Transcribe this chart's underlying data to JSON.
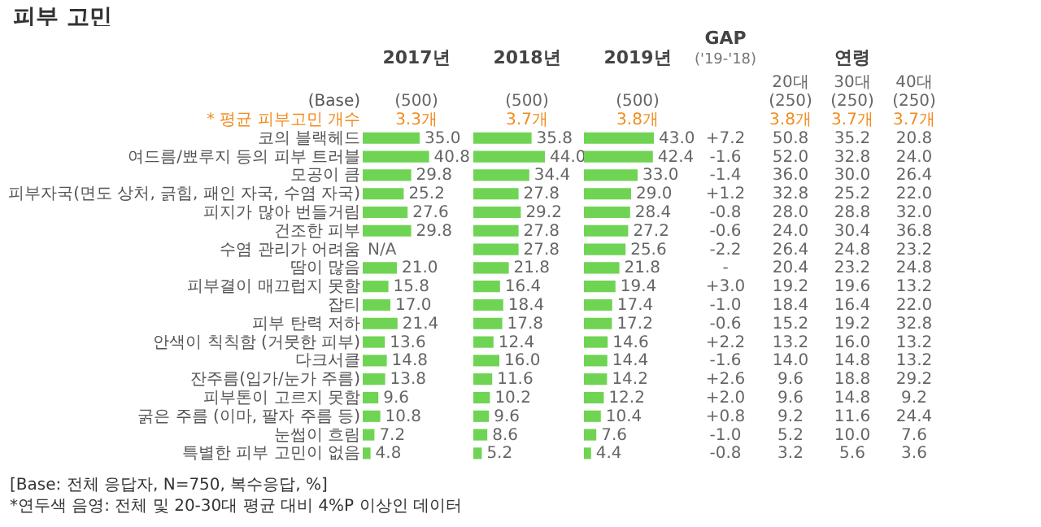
{
  "chart_data": [
    {
      "type": "other",
      "title": "피부 고민",
      "annotations": [
        "(Base)",
        "* 평균 피부고민 개수",
        "[Base: 전체 응답자, N=750, 복수응답, %]",
        "*연두색 음영: 전체 및 20-30대 평균 대비 4%P 이상인 데이터"
      ]
    },
    {
      "type": "bar",
      "orientation": "horizontal",
      "title": "2017년",
      "annotations": [
        "(500)",
        "3.3개"
      ],
      "tick_labels": "y",
      "color": "#6fd453",
      "categories": [
        "코의 블랙헤드",
        "여드름/뾰루지 등의 피부 트러블",
        "모공이 큼",
        "피부자국(면도 상처, 긁힘, 패인 자국, 수염 자국)",
        "피지가 많아 번들거림",
        "건조한 피부",
        "수염 관리가 어려움",
        "땀이 많음",
        "피부결이 매끄럽지 못함",
        "잡티",
        "피부 탄력 저하",
        "안색이 칙칙함 (거뭇한 피부)",
        "다크서클",
        "잔주름(입가/눈가 주름)",
        "피부톤이 고르지 못함",
        "굵은 주름 (이마, 팔자 주름 등)",
        "눈썹이 흐림",
        "특별한 피부 고민이 없음"
      ],
      "values": [
        35.0,
        40.8,
        29.8,
        25.2,
        27.6,
        29.8,
        null,
        21.0,
        15.8,
        17.0,
        21.4,
        13.6,
        14.8,
        13.8,
        9.6,
        10.8,
        7.2,
        4.8
      ],
      "value_labels": [
        "35.0",
        "40.8",
        "29.8",
        "25.2",
        "27.6",
        "29.8",
        "N/A",
        "21.0",
        "15.8",
        "17.0",
        "21.4",
        "13.6",
        "14.8",
        "13.8",
        "9.6",
        "10.8",
        "7.2",
        "4.8"
      ]
    },
    {
      "type": "bar",
      "orientation": "horizontal",
      "title": "2018년",
      "annotations": [
        "(500)",
        "3.7개"
      ],
      "tick_labels": false,
      "color": "#6fd453",
      "categories": [
        null,
        null,
        null,
        null,
        null,
        null,
        null,
        null,
        null,
        null,
        null,
        null,
        null,
        null,
        null,
        null,
        null,
        null
      ],
      "values": [
        35.8,
        44.0,
        34.4,
        27.8,
        29.2,
        27.8,
        27.8,
        21.8,
        16.4,
        18.4,
        17.8,
        12.4,
        16.0,
        11.6,
        10.2,
        9.6,
        8.6,
        5.2
      ],
      "value_labels": [
        "35.8",
        "44.0",
        "34.4",
        "27.8",
        "29.2",
        "27.8",
        "27.8",
        "21.8",
        "16.4",
        "18.4",
        "17.8",
        "12.4",
        "16.0",
        "11.6",
        "10.2",
        "9.6",
        "8.6",
        "5.2"
      ]
    },
    {
      "type": "bar",
      "orientation": "horizontal",
      "title": "2019년",
      "annotations": [
        "(500)",
        "3.8개"
      ],
      "tick_labels": false,
      "color": "#6fd453",
      "categories": [
        null,
        null,
        null,
        null,
        null,
        null,
        null,
        null,
        null,
        null,
        null,
        null,
        null,
        null,
        null,
        null,
        null,
        null
      ],
      "values": [
        43.0,
        42.4,
        33.0,
        29.0,
        28.4,
        27.2,
        25.6,
        21.8,
        19.4,
        17.4,
        17.2,
        14.6,
        14.4,
        14.2,
        12.2,
        10.4,
        7.6,
        4.4
      ],
      "value_labels": [
        "43.0",
        "42.4",
        "33.0",
        "29.0",
        "28.4",
        "27.2",
        "25.6",
        "21.8",
        "19.4",
        "17.4",
        "17.2",
        "14.6",
        "14.4",
        "14.2",
        "12.2",
        "10.4",
        "7.6",
        "4.4"
      ]
    },
    {
      "type": "other",
      "title": "GAP",
      "subtitle": "('19-'18)",
      "annotations": [
        "+7.2",
        "-1.6",
        "-1.4",
        "+1.2",
        "-0.8",
        "-0.6",
        "-2.2",
        "-",
        "+3.0",
        "-1.0",
        "-0.6",
        "+2.2",
        "-1.6",
        "+2.6",
        "+2.0",
        "+0.8",
        "-1.0",
        "-0.8"
      ]
    },
    {
      "type": "other",
      "title": "연령",
      "annotations": [
        "20대",
        "30대",
        "40대",
        "(250)",
        "(250)",
        "(250)",
        "3.8개",
        "3.7개",
        "3.7개",
        "50.8",
        "35.2",
        "20.8",
        "52.0",
        "32.8",
        "24.0",
        "36.0",
        "30.0",
        "26.4",
        "32.8",
        "25.2",
        "22.0",
        "28.0",
        "28.8",
        "32.0",
        "24.0",
        "30.4",
        "36.8",
        "26.4",
        "24.8",
        "23.2",
        "20.4",
        "23.2",
        "24.8",
        "19.2",
        "19.6",
        "13.2",
        "18.4",
        "16.4",
        "22.0",
        "15.2",
        "19.2",
        "32.8",
        "13.2",
        "16.0",
        "13.2",
        "14.0",
        "14.8",
        "13.2",
        "9.6",
        "18.8",
        "29.2",
        "9.6",
        "14.8",
        "9.2",
        "9.2",
        "11.6",
        "24.4",
        "5.2",
        "10.0",
        "7.6",
        "3.2",
        "5.6",
        "3.6"
      ]
    }
  ]
}
